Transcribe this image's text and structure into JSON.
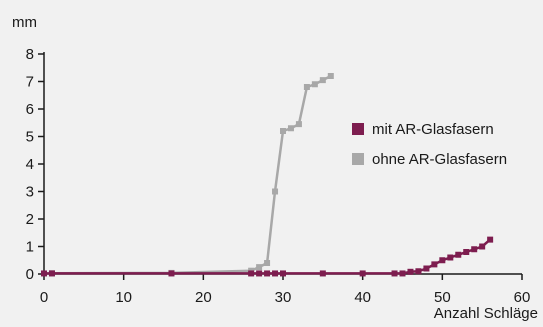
{
  "chart_data": {
    "type": "line",
    "title": "",
    "xlabel": "Anzahl Schläge",
    "ylabel": "mm",
    "xlim": [
      0,
      60
    ],
    "ylim": [
      0,
      8
    ],
    "xticks": [
      0,
      10,
      20,
      30,
      40,
      50,
      60
    ],
    "yticks": [
      0,
      1,
      2,
      3,
      4,
      5,
      6,
      7,
      8
    ],
    "grid": false,
    "legend_position": "right",
    "colors": {
      "background": "#f1f1f1",
      "axis": "#1a1a1a"
    },
    "series": [
      {
        "name": "mit AR-Glasfasern",
        "color": "#7d1d4f",
        "points": [
          [
            0,
            0.02
          ],
          [
            1,
            0.02
          ],
          [
            16,
            0.02
          ],
          [
            26,
            0.02
          ],
          [
            27,
            0.02
          ],
          [
            28,
            0.02
          ],
          [
            29,
            0.02
          ],
          [
            30,
            0.02
          ],
          [
            35,
            0.02
          ],
          [
            40,
            0.02
          ],
          [
            44,
            0.02
          ],
          [
            45,
            0.02
          ],
          [
            46,
            0.08
          ],
          [
            47,
            0.1
          ],
          [
            48,
            0.2
          ],
          [
            49,
            0.35
          ],
          [
            50,
            0.5
          ],
          [
            51,
            0.6
          ],
          [
            52,
            0.7
          ],
          [
            53,
            0.8
          ],
          [
            54,
            0.9
          ],
          [
            55,
            1.0
          ],
          [
            56,
            1.25
          ]
        ]
      },
      {
        "name": "ohne AR-Glasfasern",
        "color": "#a8a8a8",
        "points": [
          [
            1,
            0.03
          ],
          [
            16,
            0.04
          ],
          [
            26,
            0.12
          ],
          [
            27,
            0.25
          ],
          [
            28,
            0.4
          ],
          [
            29,
            3.0
          ],
          [
            30,
            5.2
          ],
          [
            31,
            5.3
          ],
          [
            32,
            5.45
          ],
          [
            33,
            6.8
          ],
          [
            34,
            6.9
          ],
          [
            35,
            7.05
          ],
          [
            36,
            7.2
          ]
        ]
      }
    ]
  }
}
